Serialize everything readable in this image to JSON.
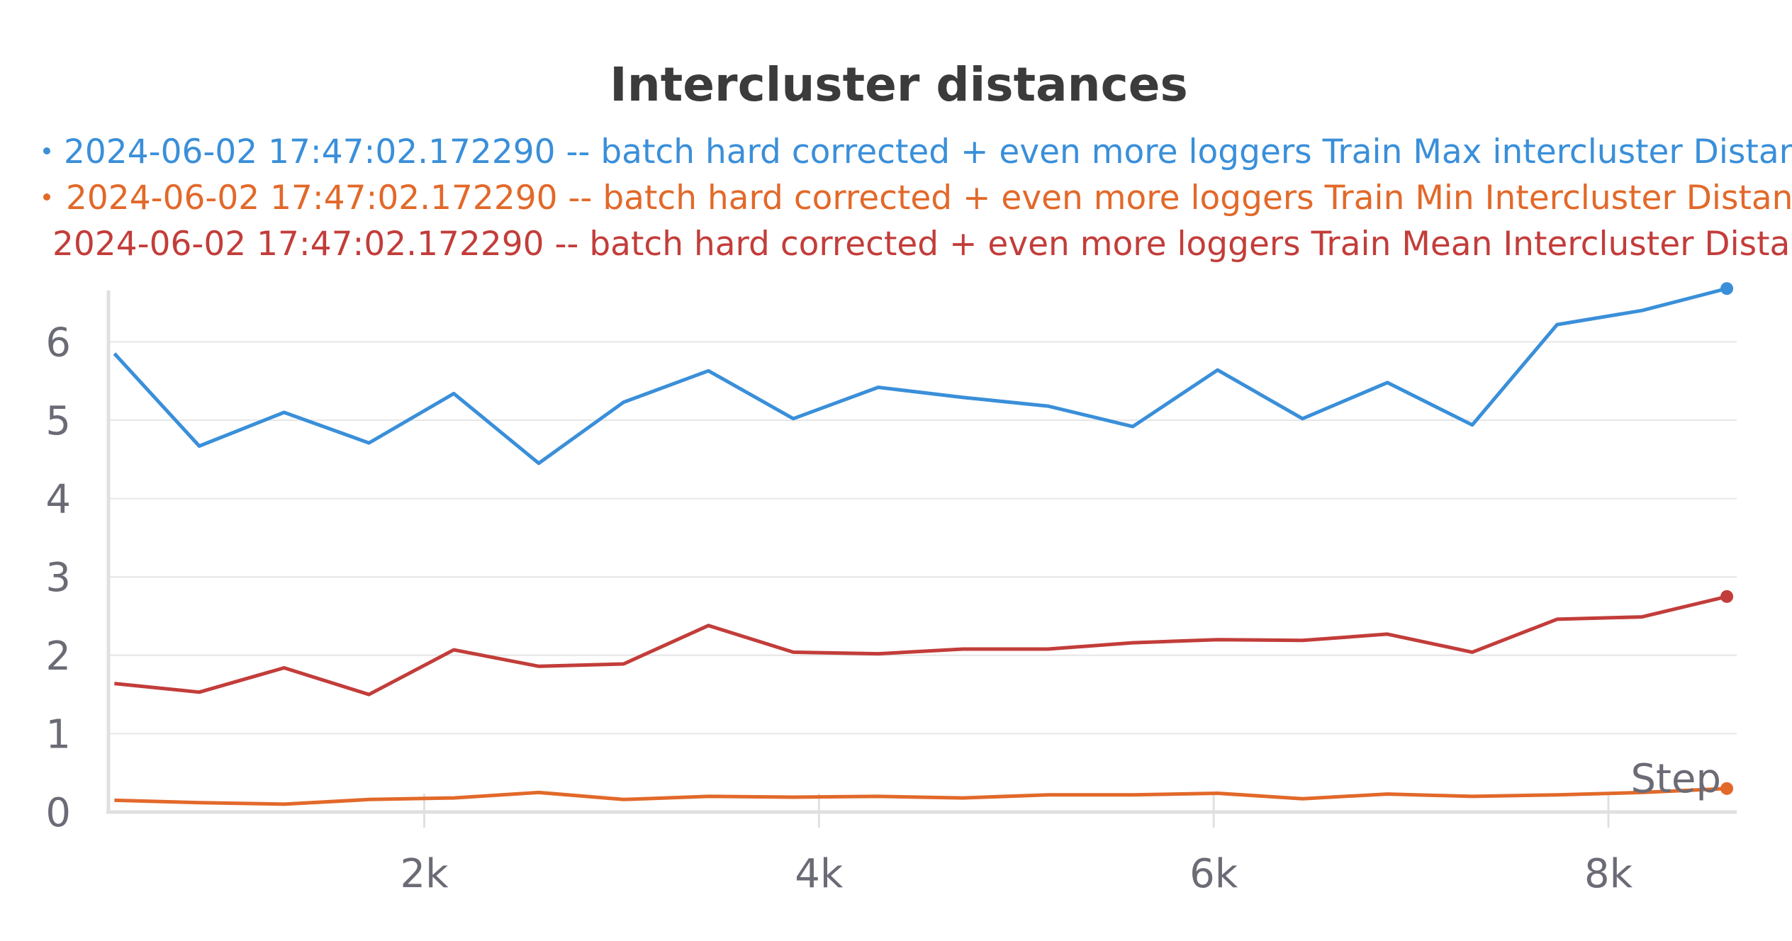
{
  "chart_data": {
    "type": "line",
    "title": "Intercluster distances",
    "xlabel": "Step",
    "ylabel": "",
    "xlim": [
      400,
      8650
    ],
    "ylim": [
      0,
      6.7
    ],
    "x_ticks": [
      2000,
      4000,
      6000,
      8000
    ],
    "x_tick_labels": [
      "2k",
      "4k",
      "6k",
      "8k"
    ],
    "y_ticks": [
      0,
      1,
      2,
      3,
      4,
      5,
      6
    ],
    "y_tick_labels": [
      "0",
      "1",
      "2",
      "3",
      "4",
      "5",
      "6"
    ],
    "grid": true,
    "legend_position": "top",
    "x": [
      430,
      860,
      1290,
      1720,
      2150,
      2580,
      3010,
      3440,
      3870,
      4300,
      4730,
      5160,
      5590,
      6020,
      6450,
      6880,
      7310,
      7740,
      8170,
      8600
    ],
    "series": [
      {
        "name": "2024-06-02 17:47:02.172290 -- batch hard corrected + even more loggers Train Max intercluster Distan",
        "color": "#3a8fd9",
        "values": [
          5.85,
          4.67,
          5.1,
          4.71,
          5.34,
          4.45,
          5.23,
          5.63,
          5.02,
          5.42,
          5.29,
          5.18,
          4.92,
          5.64,
          5.02,
          5.48,
          4.94,
          6.22,
          6.4,
          6.68
        ]
      },
      {
        "name": "2024-06-02 17:47:02.172290 -- batch hard corrected + even more loggers Train Min Intercluster Distan",
        "color": "#e2692a",
        "values": [
          0.15,
          0.12,
          0.1,
          0.16,
          0.18,
          0.25,
          0.16,
          0.2,
          0.19,
          0.2,
          0.18,
          0.22,
          0.22,
          0.24,
          0.17,
          0.23,
          0.2,
          0.22,
          0.25,
          0.3
        ]
      },
      {
        "name": "2024-06-02 17:47:02.172290 -- batch hard corrected + even more loggers Train Mean Intercluster Distar",
        "color": "#c23d3a",
        "values": [
          1.64,
          1.53,
          1.84,
          1.5,
          2.07,
          1.86,
          1.89,
          2.38,
          2.04,
          2.02,
          2.08,
          2.08,
          2.16,
          2.2,
          2.19,
          2.27,
          2.04,
          2.46,
          2.49,
          2.75
        ]
      }
    ]
  }
}
